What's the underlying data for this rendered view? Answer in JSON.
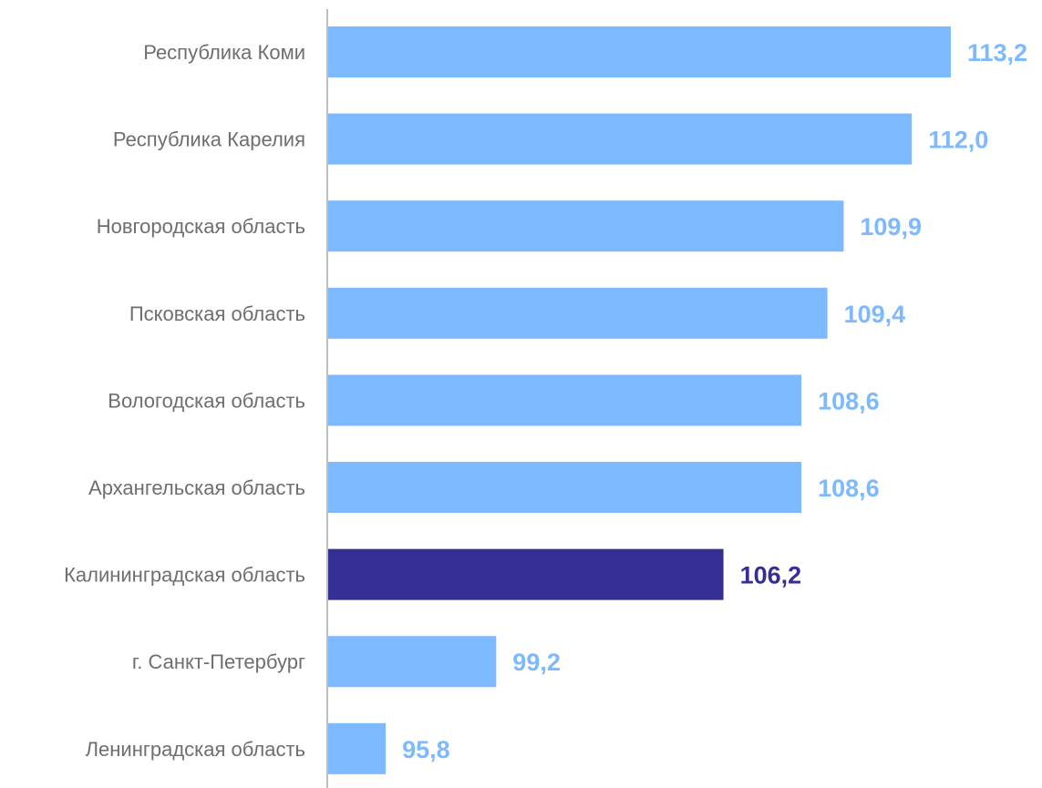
{
  "chart_data": {
    "type": "bar",
    "orientation": "horizontal",
    "title": "",
    "xlabel": "",
    "ylabel": "",
    "categories": [
      "Республика Коми",
      "Республика Карелия",
      "Новгородская область",
      "Псковская область",
      "Вологодская область",
      "Архангельская область",
      "Калининградская область",
      "г. Санкт-Петербург",
      "Ленинградская область"
    ],
    "values": [
      113.2,
      112.0,
      109.9,
      109.4,
      108.6,
      108.6,
      106.2,
      99.2,
      95.8
    ],
    "value_labels": [
      "113,2",
      "112,0",
      "109,9",
      "109,4",
      "108,6",
      "108,6",
      "106,2",
      "99,2",
      "95,8"
    ],
    "highlight_index": 6,
    "xlim": [
      94.0,
      113.2
    ],
    "grid": false,
    "legend": "none"
  },
  "colors": {
    "bar": "#7cb9ff",
    "highlight": "#362f93",
    "axis": "#bfbfbf",
    "category_text": "#6e6e6e"
  }
}
